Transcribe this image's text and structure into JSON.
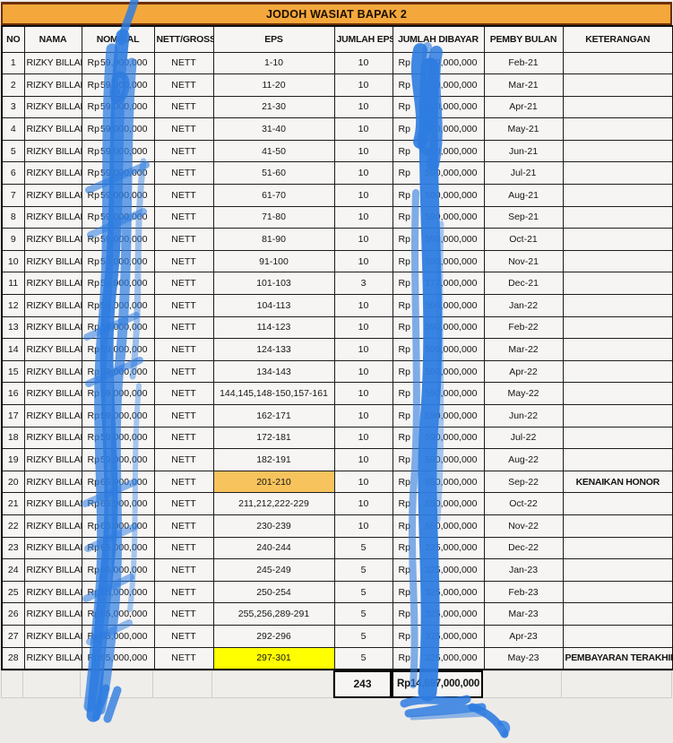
{
  "title": "JODOH WASIAT BAPAK 2",
  "table": {
    "columns": [
      "NO",
      "NAMA",
      "NOMINAL",
      "NETT/GROSS",
      "EPS",
      "JUMLAH EPS",
      "JUMLAH DIBAYAR",
      "PEMBY BULAN",
      "KETERANGAN"
    ],
    "rows": [
      {
        "no": "1",
        "nama": "RIZKY BILLAR",
        "nominal": "Rp 59,000,000",
        "nett_gross": "NETT",
        "eps": "1-10",
        "jumlah_eps": "10",
        "jumlah_dibayar": "Rp 590,000,000",
        "pemby_bulan": "Feb-21",
        "keterangan": "",
        "eps_highlight": ""
      },
      {
        "no": "2",
        "nama": "RIZKY BILLAR",
        "nominal": "Rp 59,000,000",
        "nett_gross": "NETT",
        "eps": "11-20",
        "jumlah_eps": "10",
        "jumlah_dibayar": "Rp 590,000,000",
        "pemby_bulan": "Mar-21",
        "keterangan": "",
        "eps_highlight": ""
      },
      {
        "no": "3",
        "nama": "RIZKY BILLAR",
        "nominal": "Rp 59,000,000",
        "nett_gross": "NETT",
        "eps": "21-30",
        "jumlah_eps": "10",
        "jumlah_dibayar": "Rp 590,000,000",
        "pemby_bulan": "Apr-21",
        "keterangan": "",
        "eps_highlight": ""
      },
      {
        "no": "4",
        "nama": "RIZKY BILLAR",
        "nominal": "Rp 59,000,000",
        "nett_gross": "NETT",
        "eps": "31-40",
        "jumlah_eps": "10",
        "jumlah_dibayar": "Rp 590,000,000",
        "pemby_bulan": "May-21",
        "keterangan": "",
        "eps_highlight": ""
      },
      {
        "no": "5",
        "nama": "RIZKY BILLAR",
        "nominal": "Rp 59,000,000",
        "nett_gross": "NETT",
        "eps": "41-50",
        "jumlah_eps": "10",
        "jumlah_dibayar": "Rp 590,000,000",
        "pemby_bulan": "Jun-21",
        "keterangan": "",
        "eps_highlight": ""
      },
      {
        "no": "6",
        "nama": "RIZKY BILLAR",
        "nominal": "Rp 59,000,000",
        "nett_gross": "NETT",
        "eps": "51-60",
        "jumlah_eps": "10",
        "jumlah_dibayar": "Rp 590,000,000",
        "pemby_bulan": "Jul-21",
        "keterangan": "",
        "eps_highlight": ""
      },
      {
        "no": "7",
        "nama": "RIZKY BILLAR",
        "nominal": "Rp 59,000,000",
        "nett_gross": "NETT",
        "eps": "61-70",
        "jumlah_eps": "10",
        "jumlah_dibayar": "Rp 590,000,000",
        "pemby_bulan": "Aug-21",
        "keterangan": "",
        "eps_highlight": ""
      },
      {
        "no": "8",
        "nama": "RIZKY BILLAR",
        "nominal": "Rp 59,000,000",
        "nett_gross": "NETT",
        "eps": "71-80",
        "jumlah_eps": "10",
        "jumlah_dibayar": "Rp 590,000,000",
        "pemby_bulan": "Sep-21",
        "keterangan": "",
        "eps_highlight": ""
      },
      {
        "no": "9",
        "nama": "RIZKY BILLAR",
        "nominal": "Rp 59,000,000",
        "nett_gross": "NETT",
        "eps": "81-90",
        "jumlah_eps": "10",
        "jumlah_dibayar": "Rp 590,000,000",
        "pemby_bulan": "Oct-21",
        "keterangan": "",
        "eps_highlight": ""
      },
      {
        "no": "10",
        "nama": "RIZKY BILLAR",
        "nominal": "Rp 59,000,000",
        "nett_gross": "NETT",
        "eps": "91-100",
        "jumlah_eps": "10",
        "jumlah_dibayar": "Rp 590,000,000",
        "pemby_bulan": "Nov-21",
        "keterangan": "",
        "eps_highlight": ""
      },
      {
        "no": "11",
        "nama": "RIZKY BILLAR",
        "nominal": "Rp 59,000,000",
        "nett_gross": "NETT",
        "eps": "101-103",
        "jumlah_eps": "3",
        "jumlah_dibayar": "Rp 177,000,000",
        "pemby_bulan": "Dec-21",
        "keterangan": "",
        "eps_highlight": ""
      },
      {
        "no": "12",
        "nama": "RIZKY BILLAR",
        "nominal": "Rp 59,000,000",
        "nett_gross": "NETT",
        "eps": "104-113",
        "jumlah_eps": "10",
        "jumlah_dibayar": "Rp 590,000,000",
        "pemby_bulan": "Jan-22",
        "keterangan": "",
        "eps_highlight": ""
      },
      {
        "no": "13",
        "nama": "RIZKY BILLAR",
        "nominal": "Rp 59,000,000",
        "nett_gross": "NETT",
        "eps": "114-123",
        "jumlah_eps": "10",
        "jumlah_dibayar": "Rp 590,000,000",
        "pemby_bulan": "Feb-22",
        "keterangan": "",
        "eps_highlight": ""
      },
      {
        "no": "14",
        "nama": "RIZKY BILLAR",
        "nominal": "Rp 59,000,000",
        "nett_gross": "NETT",
        "eps": "124-133",
        "jumlah_eps": "10",
        "jumlah_dibayar": "Rp 590,000,000",
        "pemby_bulan": "Mar-22",
        "keterangan": "",
        "eps_highlight": ""
      },
      {
        "no": "15",
        "nama": "RIZKY BILLAR",
        "nominal": "Rp 59,000,000",
        "nett_gross": "NETT",
        "eps": "134-143",
        "jumlah_eps": "10",
        "jumlah_dibayar": "Rp 590,000,000",
        "pemby_bulan": "Apr-22",
        "keterangan": "",
        "eps_highlight": ""
      },
      {
        "no": "16",
        "nama": "RIZKY BILLAR",
        "nominal": "Rp 59,000,000",
        "nett_gross": "NETT",
        "eps": "144,145,148-150,157-161",
        "jumlah_eps": "10",
        "jumlah_dibayar": "Rp 590,000,000",
        "pemby_bulan": "May-22",
        "keterangan": "",
        "eps_highlight": ""
      },
      {
        "no": "17",
        "nama": "RIZKY BILLAR",
        "nominal": "Rp 59,000,000",
        "nett_gross": "NETT",
        "eps": "162-171",
        "jumlah_eps": "10",
        "jumlah_dibayar": "Rp 590,000,000",
        "pemby_bulan": "Jun-22",
        "keterangan": "",
        "eps_highlight": ""
      },
      {
        "no": "18",
        "nama": "RIZKY BILLAR",
        "nominal": "Rp 59,000,000",
        "nett_gross": "NETT",
        "eps": "172-181",
        "jumlah_eps": "10",
        "jumlah_dibayar": "Rp 590,000,000",
        "pemby_bulan": "Jul-22",
        "keterangan": "",
        "eps_highlight": ""
      },
      {
        "no": "19",
        "nama": "RIZKY BILLAR",
        "nominal": "Rp 59,000,000",
        "nett_gross": "NETT",
        "eps": "182-191",
        "jumlah_eps": "10",
        "jumlah_dibayar": "Rp 590,000,000",
        "pemby_bulan": "Aug-22",
        "keterangan": "",
        "eps_highlight": ""
      },
      {
        "no": "20",
        "nama": "RIZKY BILLAR",
        "nominal": "Rp 65,000,000",
        "nett_gross": "NETT",
        "eps": "201-210",
        "jumlah_eps": "10",
        "jumlah_dibayar": "Rp 650,000,000",
        "pemby_bulan": "Sep-22",
        "keterangan": "KENAIKAN HONOR",
        "eps_highlight": "orange"
      },
      {
        "no": "21",
        "nama": "RIZKY BILLAR",
        "nominal": "Rp 65,000,000",
        "nett_gross": "NETT",
        "eps": "211,212,222-229",
        "jumlah_eps": "10",
        "jumlah_dibayar": "Rp 650,000,000",
        "pemby_bulan": "Oct-22",
        "keterangan": "",
        "eps_highlight": ""
      },
      {
        "no": "22",
        "nama": "RIZKY BILLAR",
        "nominal": "Rp 65,000,000",
        "nett_gross": "NETT",
        "eps": "230-239",
        "jumlah_eps": "10",
        "jumlah_dibayar": "Rp 650,000,000",
        "pemby_bulan": "Nov-22",
        "keterangan": "",
        "eps_highlight": ""
      },
      {
        "no": "23",
        "nama": "RIZKY BILLAR",
        "nominal": "Rp 65,000,000",
        "nett_gross": "NETT",
        "eps": "240-244",
        "jumlah_eps": "5",
        "jumlah_dibayar": "Rp 325,000,000",
        "pemby_bulan": "Dec-22",
        "keterangan": "",
        "eps_highlight": ""
      },
      {
        "no": "24",
        "nama": "RIZKY BILLAR",
        "nominal": "Rp 65,000,000",
        "nett_gross": "NETT",
        "eps": "245-249",
        "jumlah_eps": "5",
        "jumlah_dibayar": "Rp 325,000,000",
        "pemby_bulan": "Jan-23",
        "keterangan": "",
        "eps_highlight": ""
      },
      {
        "no": "25",
        "nama": "RIZKY BILLAR",
        "nominal": "Rp 65,000,000",
        "nett_gross": "NETT",
        "eps": "250-254",
        "jumlah_eps": "5",
        "jumlah_dibayar": "Rp 325,000,000",
        "pemby_bulan": "Feb-23",
        "keterangan": "",
        "eps_highlight": ""
      },
      {
        "no": "26",
        "nama": "RIZKY BILLAR",
        "nominal": "Rp 65,000,000",
        "nett_gross": "NETT",
        "eps": "255,256,289-291",
        "jumlah_eps": "5",
        "jumlah_dibayar": "Rp 325,000,000",
        "pemby_bulan": "Mar-23",
        "keterangan": "",
        "eps_highlight": ""
      },
      {
        "no": "27",
        "nama": "RIZKY BILLAR",
        "nominal": "Rp 65,000,000",
        "nett_gross": "NETT",
        "eps": "292-296",
        "jumlah_eps": "5",
        "jumlah_dibayar": "Rp 325,000,000",
        "pemby_bulan": "Apr-23",
        "keterangan": "",
        "eps_highlight": ""
      },
      {
        "no": "28",
        "nama": "RIZKY BILLAR",
        "nominal": "Rp 65,000,000",
        "nett_gross": "NETT",
        "eps": "297-301",
        "jumlah_eps": "5",
        "jumlah_dibayar": "Rp 325,000,000",
        "pemby_bulan": "May-23",
        "keterangan": "PEMBAYARAN TERAKHIR",
        "eps_highlight": "yellow"
      }
    ],
    "total_jumlah_eps": "243",
    "total_dibayar_currency": "Rp",
    "total_dibayar_amount": "14,697,000,000"
  },
  "colors": {
    "title_bg": "#F4A83C",
    "highlight_orange": "#F7C35C",
    "highlight_yellow": "#FFFF00",
    "marker_blue": "#2E7CE0"
  },
  "annotations": {
    "left_marker": "blue marker scribble redacting NOMINAL column",
    "right_marker": "blue marker scribble redacting JUMLAH DIBAYAR column"
  }
}
